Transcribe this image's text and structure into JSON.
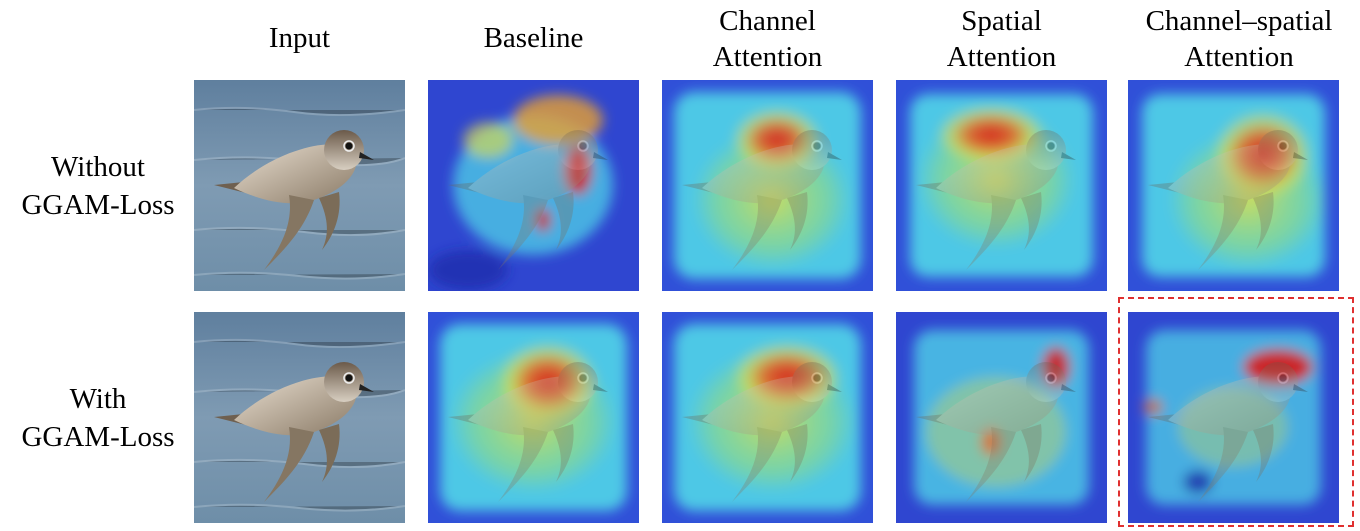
{
  "columns": [
    {
      "key": "input",
      "label": "Input"
    },
    {
      "key": "baseline",
      "label": "Baseline"
    },
    {
      "key": "channel",
      "label": "Channel\nAttention"
    },
    {
      "key": "spatial",
      "label": "Spatial\nAttention"
    },
    {
      "key": "channel_spatial",
      "label": "Channel–spatial\nAttention"
    }
  ],
  "rows": [
    {
      "key": "without",
      "label": "Without\nGGAM-Loss"
    },
    {
      "key": "with",
      "label": "With\nGGAM-Loss"
    }
  ],
  "highlight_color": "#e03030",
  "heatmap_colors": {
    "low": "#2b3bd0",
    "mid": "#3fd0e0",
    "warm": "#e8e040",
    "high": "#d81818"
  },
  "image_subject": "bird"
}
